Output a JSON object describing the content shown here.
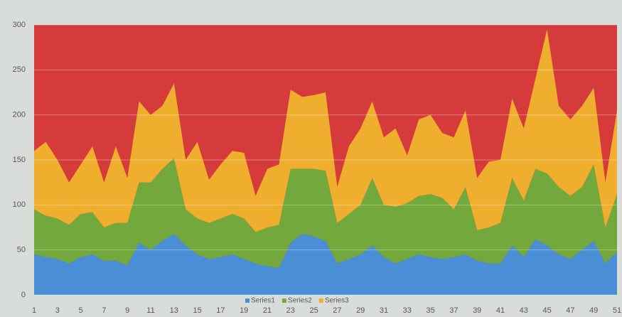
{
  "chart_data": {
    "type": "stacked_area",
    "categories": [
      1,
      null,
      3,
      null,
      5,
      null,
      7,
      null,
      9,
      null,
      11,
      null,
      13,
      null,
      15,
      null,
      17,
      null,
      19,
      null,
      21,
      null,
      23,
      null,
      25,
      null,
      27,
      null,
      29,
      null,
      31,
      null,
      33,
      null,
      35,
      null,
      37,
      null,
      39,
      null,
      41,
      null,
      43,
      null,
      45,
      null,
      47,
      null,
      49,
      null,
      51
    ],
    "series": [
      {
        "name": "Series1",
        "color": "#4a8fd6",
        "values": [
          45,
          42,
          40,
          35,
          42,
          45,
          38,
          38,
          33,
          58,
          50,
          60,
          68,
          55,
          45,
          40,
          42,
          45,
          40,
          35,
          32,
          30,
          58,
          68,
          65,
          60,
          35,
          40,
          45,
          55,
          42,
          35,
          40,
          45,
          42,
          40,
          42,
          45,
          38,
          35,
          35,
          55,
          42,
          62,
          55,
          45,
          40,
          50,
          60,
          35,
          48
        ]
      },
      {
        "name": "Series2",
        "color": "#72a83c",
        "values": [
          50,
          46,
          45,
          43,
          48,
          47,
          37,
          42,
          47,
          67,
          75,
          80,
          84,
          40,
          40,
          40,
          43,
          45,
          45,
          35,
          43,
          48,
          82,
          72,
          75,
          78,
          45,
          50,
          55,
          75,
          58,
          63,
          62,
          65,
          70,
          68,
          53,
          75,
          34,
          40,
          45,
          75,
          63,
          78,
          80,
          75,
          70,
          70,
          85,
          40,
          64
        ]
      },
      {
        "name": "Series3",
        "color": "#f0ae2e",
        "values": [
          65,
          82,
          65,
          47,
          55,
          73,
          50,
          85,
          50,
          90,
          75,
          70,
          83,
          55,
          85,
          48,
          60,
          70,
          73,
          40,
          65,
          67,
          88,
          80,
          82,
          87,
          40,
          75,
          85,
          85,
          75,
          87,
          53,
          85,
          88,
          72,
          80,
          85,
          58,
          73,
          70,
          88,
          80,
          100,
          160,
          90,
          85,
          90,
          85,
          50,
          93
        ]
      }
    ],
    "background_color": "#d63b3c",
    "ylim": [
      0,
      300
    ],
    "yticks": [
      0,
      50,
      100,
      150,
      200,
      250,
      300
    ],
    "grid": true,
    "legend": "bottom"
  }
}
